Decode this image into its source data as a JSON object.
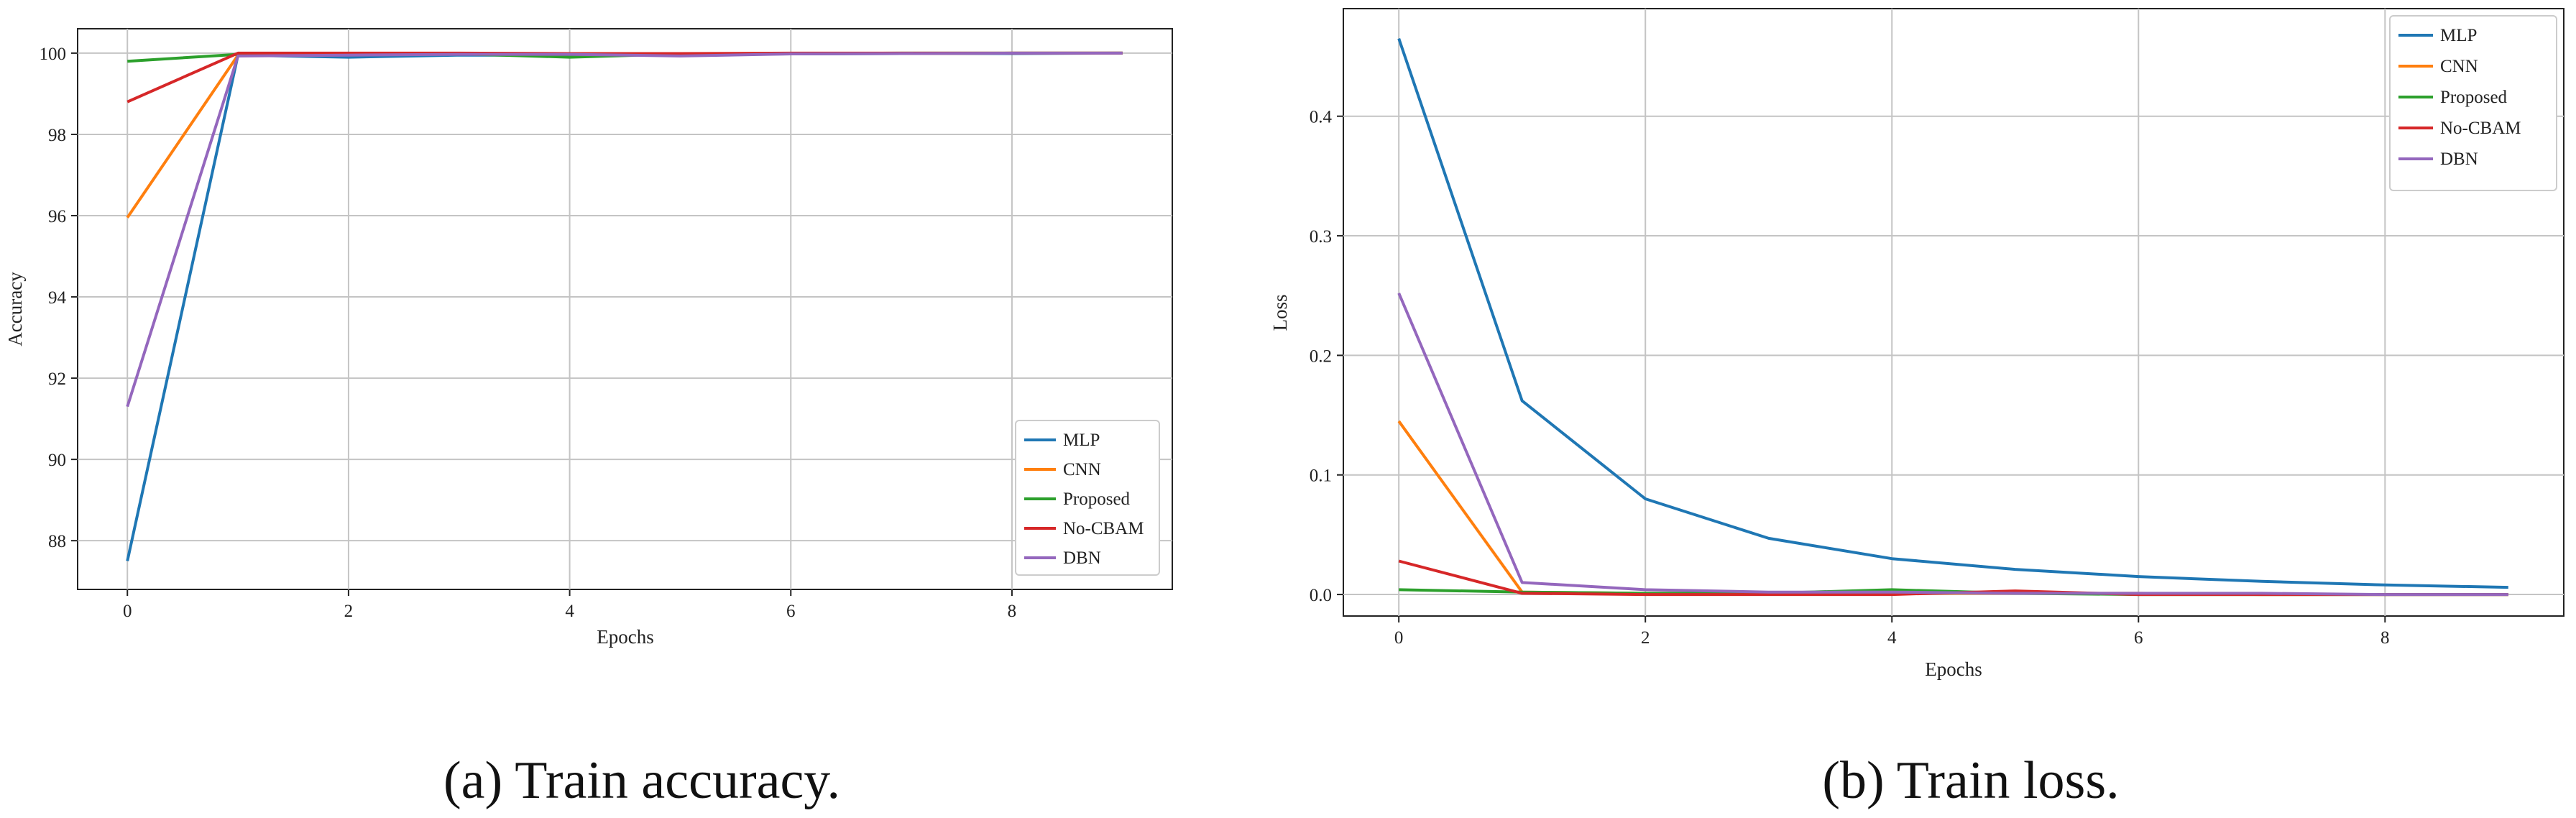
{
  "captions": {
    "a": "(a) Train accuracy.",
    "b": "(b) Train loss."
  },
  "chart_data": [
    {
      "type": "line",
      "title": "",
      "xlabel": "Epochs",
      "ylabel": "Accuracy",
      "x": [
        0,
        1,
        2,
        3,
        4,
        5,
        6,
        7,
        8,
        9
      ],
      "xlim": [
        -0.45,
        9.45
      ],
      "ylim": [
        86.8,
        100.6
      ],
      "xticks": [
        0,
        2,
        4,
        6,
        8
      ],
      "yticks": [
        88,
        90,
        92,
        94,
        96,
        98,
        100
      ],
      "grid": true,
      "legend_position": "lower-right",
      "series": [
        {
          "name": "MLP",
          "color": "#1f77b4",
          "values": [
            87.5,
            99.95,
            99.9,
            99.95,
            99.95,
            99.97,
            99.98,
            99.99,
            99.99,
            100
          ]
        },
        {
          "name": "CNN",
          "color": "#ff7f0e",
          "values": [
            95.95,
            99.95,
            99.97,
            99.98,
            99.98,
            99.99,
            99.99,
            99.99,
            100,
            100
          ]
        },
        {
          "name": "Proposed",
          "color": "#2ca02c",
          "values": [
            99.8,
            99.97,
            99.97,
            99.98,
            99.9,
            99.98,
            99.99,
            100,
            100,
            100
          ]
        },
        {
          "name": "No-CBAM",
          "color": "#d62728",
          "values": [
            98.8,
            100,
            100,
            100,
            99.99,
            99.99,
            100,
            100,
            100,
            100
          ]
        },
        {
          "name": "DBN",
          "color": "#9467bd",
          "values": [
            91.3,
            99.93,
            99.95,
            99.97,
            99.97,
            99.93,
            99.98,
            99.99,
            100,
            100
          ]
        }
      ]
    },
    {
      "type": "line",
      "title": "",
      "xlabel": "Epochs",
      "ylabel": "Loss",
      "x": [
        0,
        1,
        2,
        3,
        4,
        5,
        6,
        7,
        8,
        9
      ],
      "xlim": [
        -0.45,
        9.45
      ],
      "ylim": [
        -0.018,
        0.49
      ],
      "xticks": [
        0,
        2,
        4,
        6,
        8
      ],
      "yticks": [
        0.0,
        0.1,
        0.2,
        0.3,
        0.4
      ],
      "ytick_labels": [
        "0.0",
        "0.1",
        "0.2",
        "0.3",
        "0.4"
      ],
      "grid": true,
      "legend_position": "top-right",
      "series": [
        {
          "name": "MLP",
          "color": "#1f77b4",
          "values": [
            0.465,
            0.162,
            0.08,
            0.047,
            0.03,
            0.021,
            0.015,
            0.011,
            0.008,
            0.006
          ]
        },
        {
          "name": "CNN",
          "color": "#ff7f0e",
          "values": [
            0.145,
            0.002,
            0.001,
            0.001,
            0.001,
            0.001,
            0.001,
            0.0,
            0.0,
            0.0
          ]
        },
        {
          "name": "Proposed",
          "color": "#2ca02c",
          "values": [
            0.004,
            0.002,
            0.001,
            0.001,
            0.004,
            0.001,
            0.0,
            0.0,
            0.0,
            0.0
          ]
        },
        {
          "name": "No-CBAM",
          "color": "#d62728",
          "values": [
            0.028,
            0.001,
            0.0,
            0.0,
            0.0,
            0.003,
            0.0,
            0.0,
            0.0,
            0.0
          ]
        },
        {
          "name": "DBN",
          "color": "#9467bd",
          "values": [
            0.252,
            0.01,
            0.004,
            0.002,
            0.002,
            0.001,
            0.001,
            0.001,
            0.0,
            0.0
          ]
        }
      ]
    }
  ]
}
